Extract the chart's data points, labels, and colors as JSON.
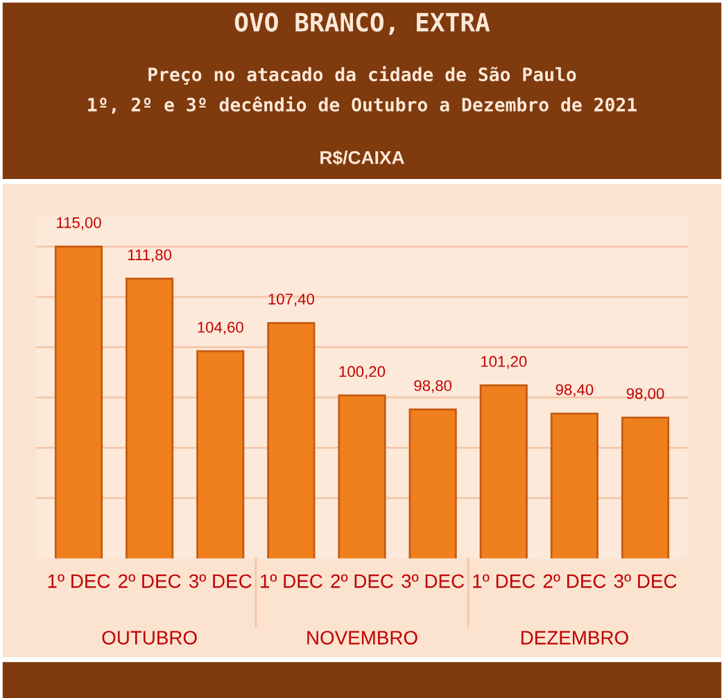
{
  "chart_data": {
    "type": "bar",
    "title": "OVO BRANCO, EXTRA",
    "subtitle": "Preço no atacado da cidade de São Paulo\n1º, 2º e 3º decêndio de Outubro a Dezembro de 2021",
    "ylabel": "R$/CAIXA",
    "categories": [
      "1º DEC",
      "2º DEC",
      "3º DEC",
      "1º DEC",
      "2º DEC",
      "3º DEC",
      "1º DEC",
      "2º DEC",
      "3º DEC"
    ],
    "values": [
      115.0,
      111.8,
      104.6,
      107.4,
      100.2,
      98.8,
      101.2,
      98.4,
      98.0
    ],
    "color": "#f0801e",
    "data_labels": true,
    "value_labels": [
      "115,00",
      "111,80",
      "104,60",
      "107,40",
      "100,20",
      "98,80",
      "101,20",
      "98,40",
      "98,00"
    ],
    "ylim": [
      84,
      118
    ],
    "yticks": [
      {
        "value": 90,
        "label": null
      },
      {
        "value": 95,
        "label": null
      },
      {
        "value": 100,
        "label": null
      },
      {
        "value": 105,
        "label": null
      },
      {
        "value": 110,
        "label": null
      },
      {
        "value": 115,
        "label": null
      }
    ],
    "grid": "y",
    "tick_labels": "x",
    "annotations": [
      "OUTUBRO",
      "NOVEMBRO",
      "DEZEMBRO"
    ]
  }
}
